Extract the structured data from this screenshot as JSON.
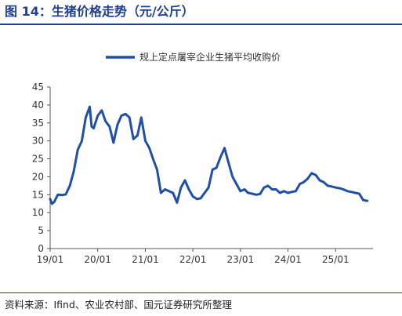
{
  "figure": {
    "title": "图 14：生猪价格走势（元/公斤）",
    "source": "资料来源：Ifind、农业农村部、国元证券研究所整理"
  },
  "colors": {
    "accent": "#1f3f8f",
    "series": "#1f4fa8"
  },
  "chart_data": {
    "type": "line",
    "title": "",
    "xlabel": "",
    "ylabel": "",
    "ylim": [
      0,
      45
    ],
    "yticks": [
      "0",
      "5",
      "10",
      "15",
      "20",
      "25",
      "30",
      "35",
      "40",
      "45"
    ],
    "xticks": [
      {
        "label": "19/01",
        "x": "2019-01"
      },
      {
        "label": "20/01",
        "x": "2020-01"
      },
      {
        "label": "21/01",
        "x": "2021-01"
      },
      {
        "label": "22/01",
        "x": "2022-01"
      },
      {
        "label": "23/01",
        "x": "2023-01"
      },
      {
        "label": "24/01",
        "x": "2024-01"
      },
      {
        "label": "25/01",
        "x": "2025-01"
      }
    ],
    "grid": false,
    "legend_position": "top",
    "series": [
      {
        "name": "规上定点屠宰企业生猪平均收购价",
        "x": [
          "2019-01",
          "2019-01-15",
          "2019-02",
          "2019-03",
          "2019-04",
          "2019-05",
          "2019-06",
          "2019-07",
          "2019-08",
          "2019-09",
          "2019-10",
          "2019-11",
          "2019-11-15",
          "2019-12",
          "2020-01",
          "2020-02",
          "2020-03",
          "2020-04",
          "2020-05",
          "2020-06",
          "2020-07",
          "2020-08",
          "2020-09",
          "2020-10",
          "2020-11",
          "2020-12",
          "2021-01",
          "2021-02",
          "2021-03",
          "2021-04",
          "2021-05",
          "2021-06",
          "2021-07",
          "2021-08",
          "2021-09",
          "2021-10",
          "2021-11",
          "2021-12",
          "2022-01",
          "2022-02",
          "2022-03",
          "2022-04",
          "2022-05",
          "2022-06",
          "2022-07",
          "2022-08",
          "2022-09",
          "2022-10",
          "2022-11",
          "2022-12",
          "2023-01",
          "2023-02",
          "2023-03",
          "2023-04",
          "2023-05",
          "2023-06",
          "2023-07",
          "2023-08",
          "2023-09",
          "2023-10",
          "2023-11",
          "2023-12",
          "2024-01",
          "2024-02",
          "2024-03",
          "2024-04",
          "2024-05",
          "2024-06",
          "2024-07",
          "2024-08",
          "2024-09",
          "2024-10",
          "2024-11",
          "2024-12",
          "2025-01",
          "2025-02",
          "2025-03",
          "2025-04",
          "2025-05",
          "2025-06",
          "2025-07",
          "2025-08",
          "2025-09"
        ],
        "values": [
          13.8,
          12.5,
          13.0,
          15.0,
          14.9,
          15.1,
          17.5,
          21.5,
          27.5,
          30.0,
          36.5,
          39.5,
          34.0,
          33.5,
          37.0,
          38.5,
          35.5,
          34.0,
          29.5,
          34.5,
          37.0,
          37.5,
          36.5,
          30.5,
          31.5,
          36.5,
          30.0,
          28.0,
          25.0,
          22.0,
          15.5,
          16.5,
          16.0,
          15.5,
          12.8,
          17.0,
          19.0,
          16.5,
          14.5,
          13.8,
          14.0,
          15.5,
          17.0,
          22.0,
          22.5,
          25.5,
          28.0,
          24.0,
          20.0,
          18.0,
          16.0,
          16.5,
          15.5,
          15.3,
          15.0,
          15.2,
          17.0,
          17.5,
          16.5,
          16.5,
          15.5,
          16.0,
          15.5,
          15.8,
          16.0,
          18.0,
          18.5,
          19.5,
          21.0,
          20.5,
          19.0,
          18.5,
          17.5,
          17.3,
          17.0,
          16.8,
          16.5,
          16.0,
          15.8,
          15.5,
          15.3,
          13.5,
          13.3
        ]
      }
    ]
  }
}
